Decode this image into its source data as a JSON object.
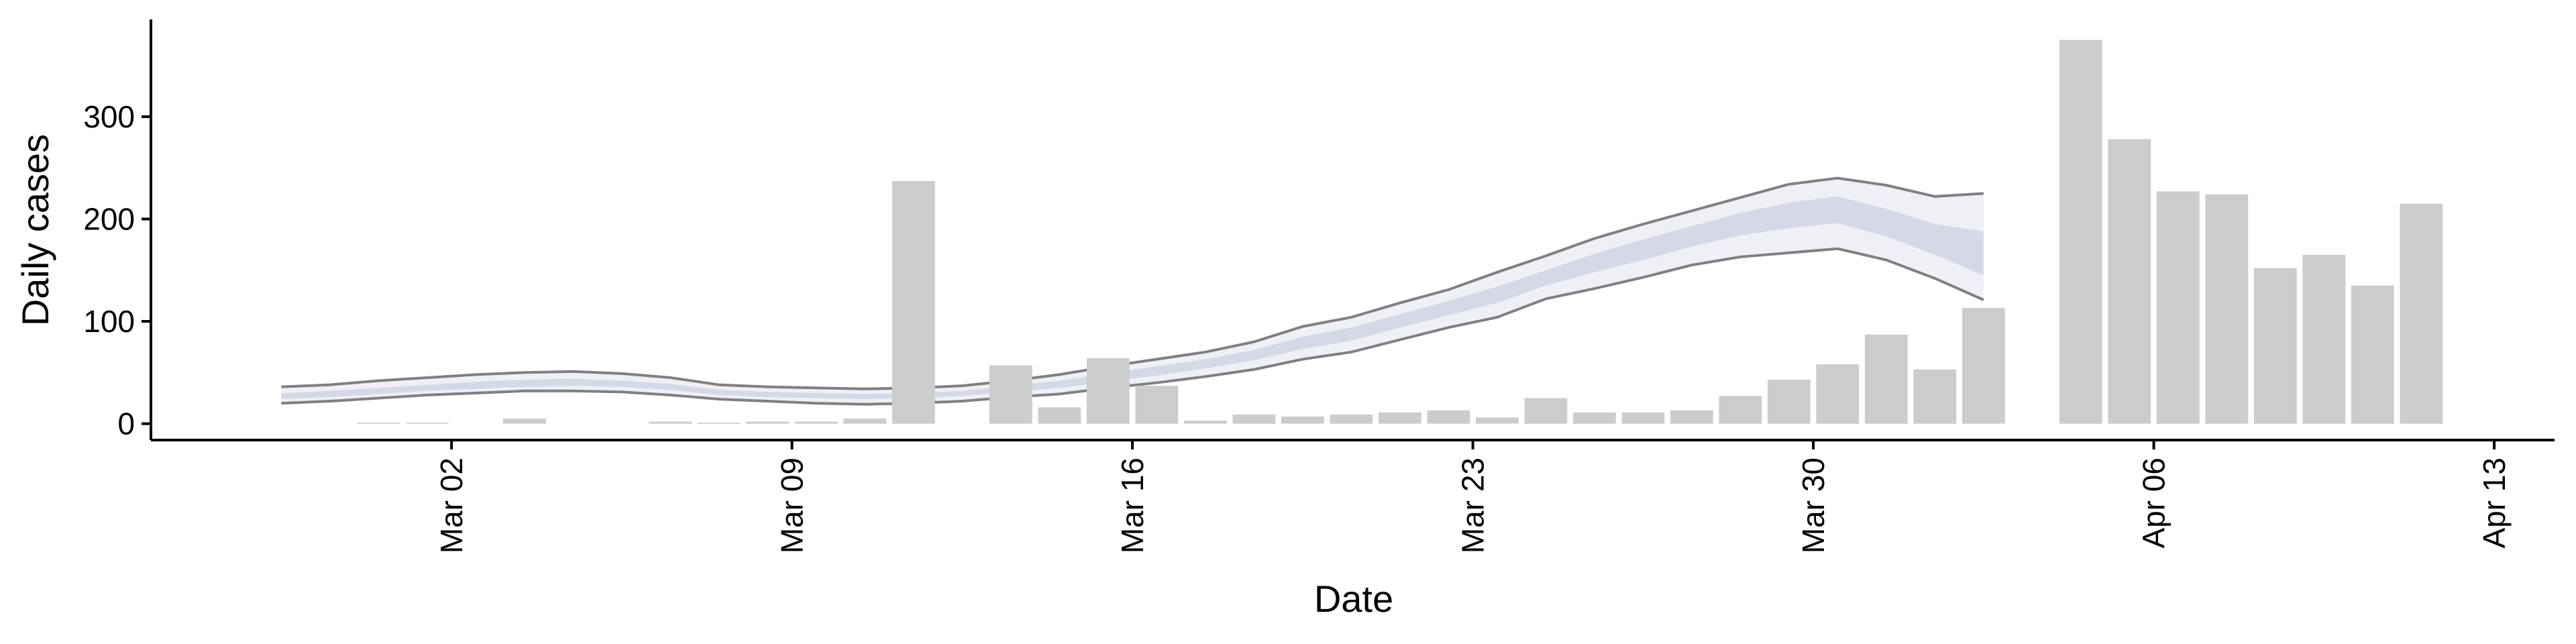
{
  "chart_data": {
    "type": "bar",
    "xlabel": "Date",
    "ylabel": "Daily cases",
    "x": [
      "Feb 27",
      "Feb 28",
      "Feb 29",
      "Mar 01",
      "Mar 02",
      "Mar 03",
      "Mar 04",
      "Mar 05",
      "Mar 06",
      "Mar 07",
      "Mar 08",
      "Mar 09",
      "Mar 10",
      "Mar 11",
      "Mar 12",
      "Mar 13",
      "Mar 14",
      "Mar 15",
      "Mar 16",
      "Mar 17",
      "Mar 18",
      "Mar 19",
      "Mar 20",
      "Mar 21",
      "Mar 22",
      "Mar 23",
      "Mar 24",
      "Mar 25",
      "Mar 26",
      "Mar 27",
      "Mar 28",
      "Mar 29",
      "Mar 30",
      "Mar 31",
      "Apr 01",
      "Apr 02",
      "Apr 03",
      "Apr 04",
      "Apr 05",
      "Apr 06",
      "Apr 07",
      "Apr 08",
      "Apr 09",
      "Apr 10",
      "Apr 11",
      "Apr 12",
      "Apr 13"
    ],
    "values": [
      null,
      null,
      1,
      1,
      0,
      5,
      0,
      0,
      2,
      1,
      2,
      2,
      5,
      237,
      0,
      57,
      16,
      64,
      37,
      3,
      9,
      7,
      9,
      11,
      13,
      6,
      25,
      11,
      11,
      13,
      27,
      43,
      58,
      87,
      53,
      113,
      null,
      375,
      278,
      227,
      224,
      152,
      165,
      135,
      215,
      null,
      null
    ],
    "color": "#cccccc",
    "bands": [
      {
        "color": "#eef0f5",
        "line_color": "#808080",
        "lower": [
          20,
          22,
          25,
          28,
          30,
          32,
          32,
          31,
          28,
          24,
          22,
          20,
          19,
          20,
          22,
          26,
          29,
          35,
          40,
          46,
          53,
          63,
          70,
          82,
          94,
          104,
          122,
          132,
          143,
          155,
          163,
          167,
          171,
          160,
          142,
          121,
          null,
          null,
          null,
          null,
          null,
          null,
          null,
          null,
          null,
          null,
          null
        ],
        "upper": [
          36,
          38,
          42,
          45,
          48,
          50,
          51,
          49,
          45,
          38,
          36,
          35,
          34,
          35,
          37,
          42,
          48,
          56,
          63,
          70,
          80,
          95,
          104,
          118,
          131,
          148,
          164,
          181,
          195,
          208,
          221,
          234,
          240,
          233,
          222,
          225,
          null,
          null,
          null,
          null,
          null,
          null,
          null,
          null,
          null,
          null,
          null
        ]
      },
      {
        "color": "#d5d9e7",
        "lower": [
          24,
          26,
          29,
          32,
          34,
          36,
          37,
          36,
          33,
          28,
          26,
          25,
          24,
          25,
          27,
          31,
          35,
          41,
          47,
          54,
          62,
          73,
          81,
          94,
          106,
          118,
          135,
          148,
          160,
          173,
          184,
          191,
          196,
          183,
          165,
          145,
          null,
          null,
          null,
          null,
          null,
          null,
          null,
          null,
          null,
          null,
          null
        ],
        "upper": [
          30,
          32,
          35,
          38,
          41,
          43,
          44,
          42,
          39,
          33,
          31,
          30,
          29,
          30,
          32,
          37,
          42,
          49,
          56,
          63,
          72,
          85,
          94,
          107,
          120,
          134,
          150,
          166,
          180,
          193,
          206,
          216,
          222,
          210,
          195,
          188,
          null,
          null,
          null,
          null,
          null,
          null,
          null,
          null,
          null,
          null,
          null
        ]
      }
    ],
    "ylim": [
      -16,
      395
    ],
    "yticks": [
      0,
      100,
      200,
      300
    ],
    "xticks": [
      "Mar 02",
      "Mar 09",
      "Mar 16",
      "Mar 23",
      "Mar 30",
      "Apr 06",
      "Apr 13"
    ]
  }
}
